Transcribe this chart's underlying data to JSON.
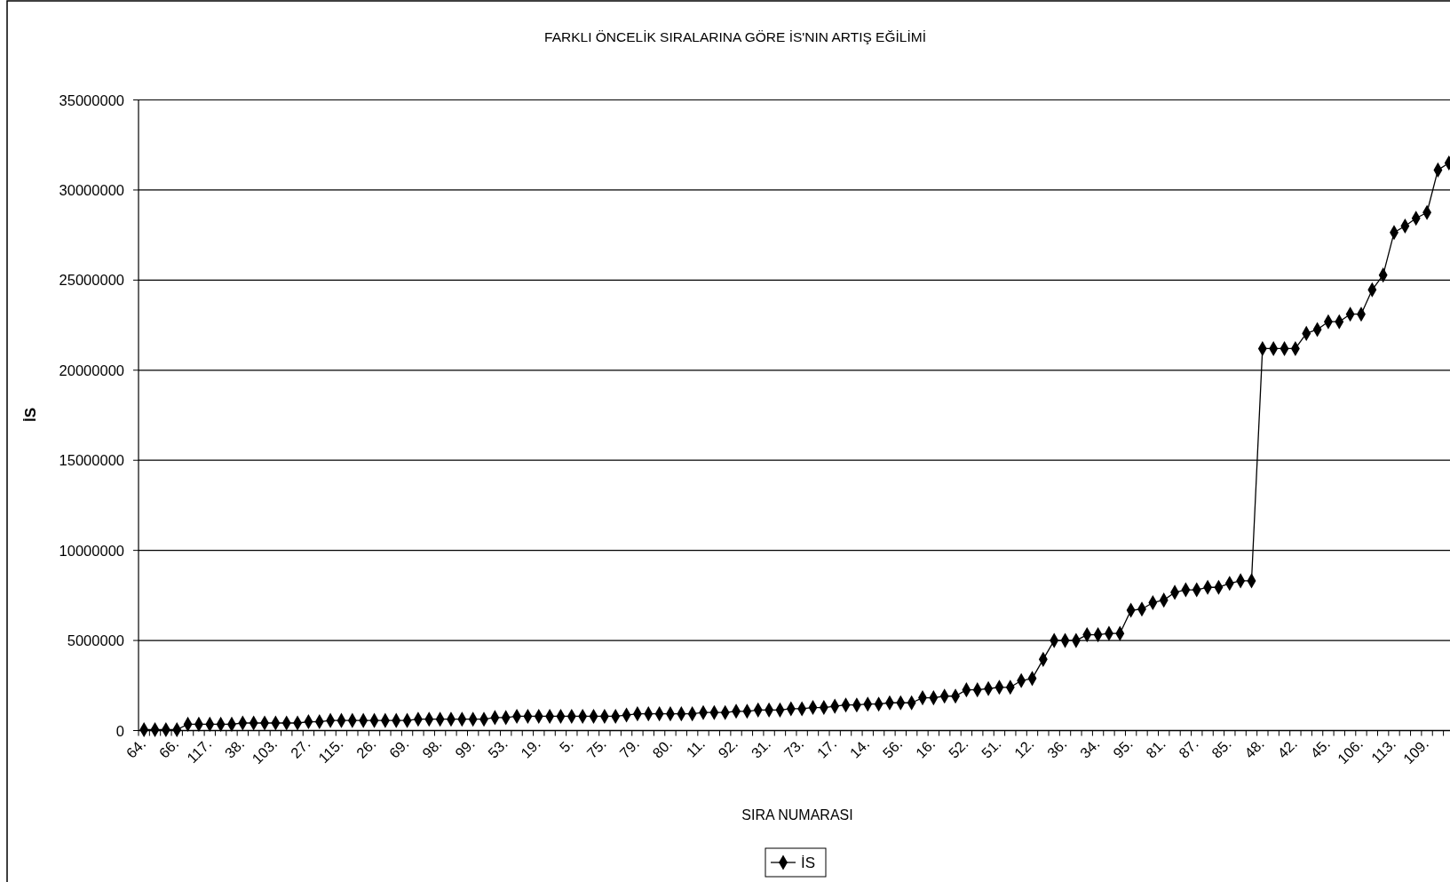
{
  "chart_data": {
    "type": "line",
    "title": "FARKLI ÖNCELİK SIRALARINA GÖRE İS'NIN ARTIŞ EĞİLİMİ",
    "xlabel": "SIRA NUMARASI",
    "ylabel": "İS",
    "categories": [
      "64.",
      null,
      null,
      "66.",
      null,
      null,
      "117.",
      null,
      null,
      "38.",
      null,
      null,
      "103.",
      null,
      null,
      "27.",
      null,
      null,
      "115.",
      null,
      null,
      "26.",
      null,
      null,
      "69.",
      null,
      null,
      "98.",
      null,
      null,
      "99.",
      null,
      null,
      "53.",
      null,
      null,
      "19.",
      null,
      null,
      "5.",
      null,
      null,
      "75.",
      null,
      null,
      "79.",
      null,
      null,
      "80.",
      null,
      null,
      "11.",
      null,
      null,
      "92.",
      null,
      null,
      "31.",
      null,
      null,
      "73.",
      null,
      null,
      "17.",
      null,
      null,
      "14.",
      null,
      null,
      "56.",
      null,
      null,
      "16.",
      null,
      null,
      "52.",
      null,
      null,
      "51.",
      null,
      null,
      "12.",
      null,
      null,
      "36.",
      null,
      null,
      "34.",
      null,
      null,
      "95.",
      null,
      null,
      "81.",
      null,
      null,
      "87.",
      null,
      null,
      "85.",
      null,
      null,
      "48.",
      null,
      null,
      "42.",
      null,
      null,
      "45.",
      null,
      null,
      "106.",
      null,
      null,
      "113.",
      null,
      null,
      "109.",
      null,
      null
    ],
    "series": [
      {
        "name": "İS",
        "color": "#000000",
        "values": [
          50000,
          50000,
          50000,
          50000,
          350000,
          350000,
          350000,
          350000,
          350000,
          420000,
          420000,
          420000,
          420000,
          420000,
          420000,
          490000,
          490000,
          560000,
          560000,
          560000,
          560000,
          560000,
          560000,
          560000,
          560000,
          630000,
          630000,
          630000,
          630000,
          630000,
          630000,
          630000,
          720000,
          720000,
          790000,
          790000,
          790000,
          790000,
          790000,
          790000,
          790000,
          790000,
          790000,
          790000,
          860000,
          930000,
          930000,
          930000,
          930000,
          930000,
          930000,
          1000000,
          1000000,
          1000000,
          1070000,
          1070000,
          1140000,
          1140000,
          1140000,
          1210000,
          1210000,
          1280000,
          1280000,
          1350000,
          1420000,
          1420000,
          1470000,
          1470000,
          1540000,
          1540000,
          1540000,
          1820000,
          1820000,
          1910000,
          1910000,
          2260000,
          2260000,
          2330000,
          2400000,
          2400000,
          2770000,
          2890000,
          3950000,
          5000000,
          5000000,
          5000000,
          5320000,
          5320000,
          5390000,
          5390000,
          6680000,
          6740000,
          7100000,
          7240000,
          7670000,
          7810000,
          7810000,
          7950000,
          7950000,
          8170000,
          8310000,
          8310000,
          21200000,
          21200000,
          21200000,
          21200000,
          22040000,
          22260000,
          22690000,
          22690000,
          23110000,
          23110000,
          24460000,
          25280000,
          27640000,
          28000000,
          28430000,
          28750000,
          31110000,
          31500000
        ]
      }
    ],
    "ylim": [
      0,
      35000000
    ],
    "yticks": [
      0,
      5000000,
      10000000,
      15000000,
      20000000,
      25000000,
      30000000,
      35000000
    ],
    "grid": "y",
    "legend": "bottom",
    "marker": "diamond",
    "line_style": "solid"
  }
}
